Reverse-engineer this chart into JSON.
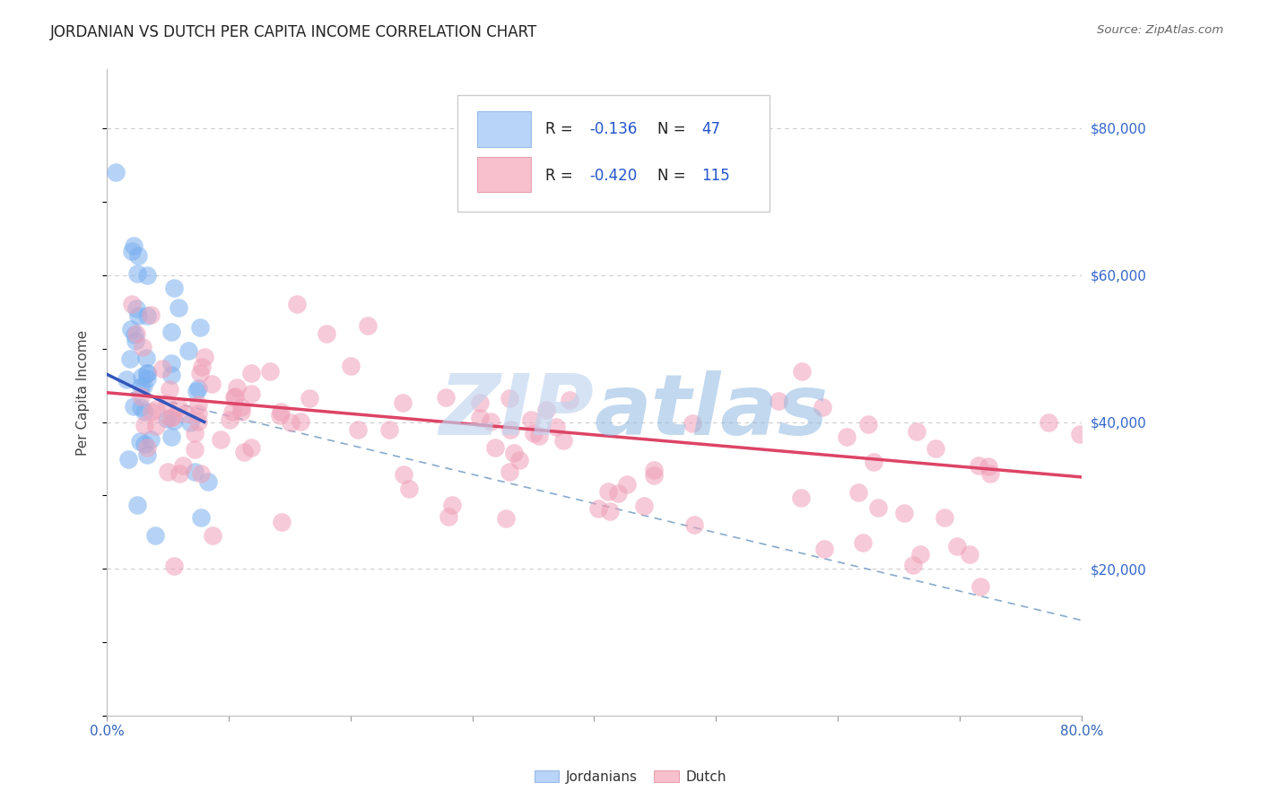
{
  "title": "JORDANIAN VS DUTCH PER CAPITA INCOME CORRELATION CHART",
  "source": "Source: ZipAtlas.com",
  "ylabel": "Per Capita Income",
  "ylim": [
    0,
    88000
  ],
  "xlim": [
    0.0,
    0.8
  ],
  "background_color": "#ffffff",
  "grid_color": "#cccccc",
  "title_color": "#333333",
  "watermark_text": "ZIPAtlas",
  "watermark_color_zip": "#c8d8f0",
  "watermark_color_atlas": "#8ab4d8",
  "jordanians_color": "#7ab0f0",
  "jordanians_edge": "#5590d8",
  "dutch_color": "#f0a0b8",
  "dutch_edge": "#d87090",
  "trend_blue_color": "#3355bb",
  "trend_pink_color": "#dd4466",
  "trend_dash_color": "#88aacc",
  "legend_blue_face": "#b8d4f8",
  "legend_blue_edge": "#9abbe8",
  "legend_pink_face": "#f8c0cc",
  "legend_pink_edge": "#e8a0b0",
  "r_jordan": "-0.136",
  "n_jordan": "47",
  "r_dutch": "-0.420",
  "n_dutch": "115",
  "jordan_trend_x": [
    0.0,
    0.08
  ],
  "jordan_trend_y": [
    46500,
    40000
  ],
  "dutch_trend_x": [
    0.0,
    0.8
  ],
  "dutch_trend_y": [
    44000,
    32500
  ],
  "dash_trend_x": [
    0.02,
    0.8
  ],
  "dash_trend_y": [
    44000,
    13000
  ]
}
